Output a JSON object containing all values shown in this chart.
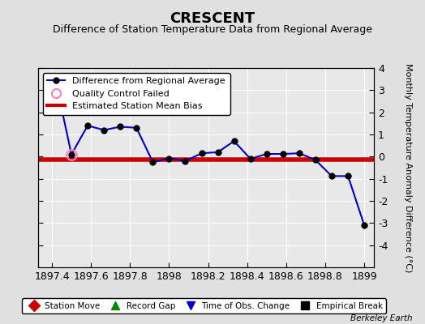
{
  "title": "CRESCENT",
  "subtitle": "Difference of Station Temperature Data from Regional Average",
  "ylabel_right": "Monthly Temperature Anomaly Difference (°C)",
  "background_color": "#e0e0e0",
  "plot_bg_color": "#e8e8e8",
  "xlim": [
    1897.33,
    1899.05
  ],
  "ylim": [
    -5,
    4
  ],
  "yticks": [
    -4,
    -3,
    -2,
    -1,
    0,
    1,
    2,
    3,
    4
  ],
  "xticks": [
    1897.4,
    1897.6,
    1897.8,
    1898.0,
    1898.2,
    1898.4,
    1898.6,
    1898.8,
    1899.0
  ],
  "xtick_labels": [
    "1897.4",
    "1897.6",
    "1897.8",
    "1898",
    "1898.2",
    "1898.4",
    "1898.6",
    "1898.8",
    "1899"
  ],
  "line_x": [
    1897.417,
    1897.5,
    1897.583,
    1897.667,
    1897.75,
    1897.833,
    1897.917,
    1898.0,
    1898.083,
    1898.167,
    1898.25,
    1898.333,
    1898.417,
    1898.5,
    1898.583,
    1898.667,
    1898.75,
    1898.833,
    1898.917,
    1899.0
  ],
  "line_y": [
    3.5,
    0.1,
    1.4,
    1.2,
    1.35,
    1.3,
    -0.25,
    -0.08,
    -0.2,
    0.15,
    0.2,
    0.7,
    -0.1,
    0.12,
    0.12,
    0.15,
    -0.15,
    -0.88,
    -0.88,
    -3.1
  ],
  "line_color": "#0000cc",
  "line_width": 1.5,
  "marker_color": "#000000",
  "marker_size": 5,
  "qc_fail_x": [
    1897.5
  ],
  "qc_fail_y": [
    0.1
  ],
  "bias_y": -0.12,
  "bias_color": "#cc0000",
  "bias_linewidth": 4.0,
  "grid_color": "#ffffff",
  "bottom_legend_items": [
    "Station Move",
    "Record Gap",
    "Time of Obs. Change",
    "Empirical Break"
  ],
  "bottom_legend_colors": [
    "#cc0000",
    "#008800",
    "#0000cc",
    "#000000"
  ],
  "bottom_legend_markers": [
    "D",
    "^",
    "v",
    "s"
  ],
  "berkeley_earth_text": "Berkeley Earth",
  "title_fontsize": 13,
  "subtitle_fontsize": 9,
  "tick_fontsize": 9
}
